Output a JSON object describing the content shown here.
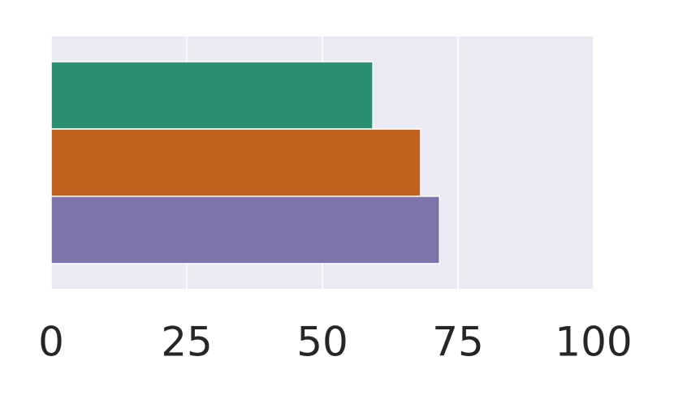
{
  "chart_data": {
    "type": "barh",
    "categories": [
      null,
      null,
      null
    ],
    "values": [
      59.3,
      68.1,
      71.6
    ],
    "colors": [
      "#2b8f72",
      "#bf621f",
      "#7c75aa"
    ],
    "xlim": [
      0,
      100
    ],
    "xticks": [
      0,
      25,
      50,
      75,
      100
    ],
    "grid": true
  }
}
